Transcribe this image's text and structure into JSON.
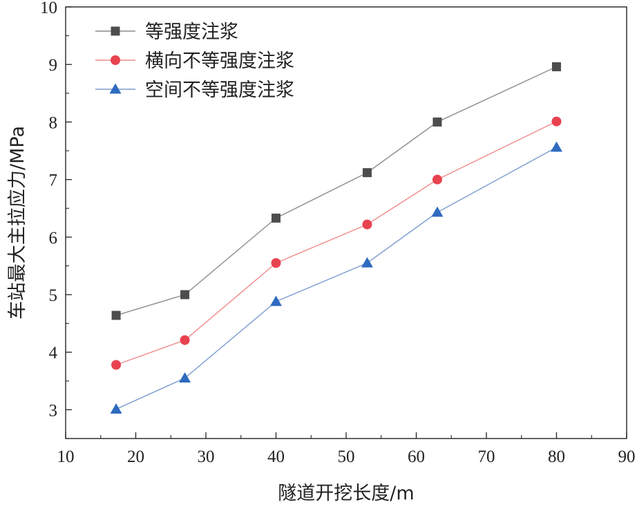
{
  "chart_data": {
    "type": "line",
    "xlabel": "隧道开挖长度/m",
    "ylabel": "车站最大主拉应力/MPa",
    "xlim": [
      10,
      90
    ],
    "ylim": [
      2.5,
      10
    ],
    "xticks": [
      10,
      20,
      30,
      40,
      50,
      60,
      70,
      80,
      90
    ],
    "yticks": [
      3,
      4,
      5,
      6,
      7,
      8,
      9,
      10
    ],
    "grid": false,
    "legend_position": "top-left",
    "x": [
      17.2,
      27,
      40,
      53,
      63,
      80
    ],
    "series": [
      {
        "name": "等强度注浆",
        "marker": "square",
        "color": "#4d4d4d",
        "line_color": "#8c8c8c",
        "values": [
          4.64,
          5.0,
          6.33,
          7.12,
          8.0,
          8.96
        ]
      },
      {
        "name": "横向不等强度注浆",
        "marker": "circle",
        "color": "#e8424f",
        "line_color": "#f08a8a",
        "values": [
          3.78,
          4.21,
          5.55,
          6.22,
          7.0,
          8.01
        ]
      },
      {
        "name": "空间不等强度注浆",
        "marker": "triangle",
        "color": "#2e6bbf",
        "line_color": "#7b9ccf",
        "values": [
          3.01,
          3.55,
          4.88,
          5.55,
          6.43,
          7.56
        ]
      }
    ]
  }
}
